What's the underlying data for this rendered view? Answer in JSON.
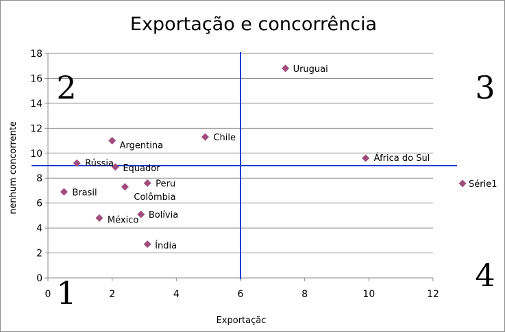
{
  "chart_data": {
    "type": "scatter",
    "title": "Exportação e concorrência",
    "xlabel": "Exportaçãc",
    "ylabel": "nenhum concorrente",
    "xlim": [
      0,
      12
    ],
    "ylim": [
      0,
      18
    ],
    "x_ticks": [
      "0",
      "2",
      "4",
      "6",
      "8",
      "10",
      "12"
    ],
    "y_ticks": [
      "0",
      "2",
      "4",
      "6",
      "8",
      "10",
      "12",
      "14",
      "16",
      "18"
    ],
    "grid": "horizontal",
    "legend_position": "right",
    "marker_color": "#a04c7c",
    "line_color": "#1f3fd6",
    "series": [
      {
        "name": "Série1",
        "points": [
          {
            "label": "Uruguai",
            "x": 7.4,
            "y": 16.8
          },
          {
            "label": "Chile",
            "x": 4.9,
            "y": 11.3
          },
          {
            "label": "Argentina",
            "x": 2.0,
            "y": 11.0
          },
          {
            "label": "Rússia",
            "x": 0.9,
            "y": 9.2
          },
          {
            "label": "Equador",
            "x": 2.1,
            "y": 8.9
          },
          {
            "label": "África do Sul",
            "x": 9.9,
            "y": 9.6
          },
          {
            "label": "Peru",
            "x": 3.1,
            "y": 7.6
          },
          {
            "label": "Colômbia",
            "x": 2.4,
            "y": 7.3
          },
          {
            "label": "Brasil",
            "x": 0.5,
            "y": 6.9
          },
          {
            "label": "Bolívia",
            "x": 2.9,
            "y": 5.1
          },
          {
            "label": "México",
            "x": 1.6,
            "y": 4.8
          },
          {
            "label": "Índia",
            "x": 3.1,
            "y": 2.7
          }
        ]
      }
    ],
    "reference_lines": {
      "x": 6,
      "y": 9
    },
    "quadrant_labels": [
      "1",
      "2",
      "3",
      "4"
    ]
  }
}
